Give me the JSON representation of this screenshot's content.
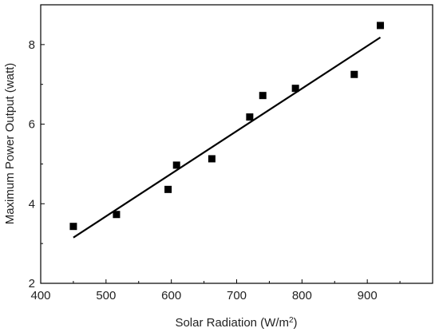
{
  "chart_data": {
    "type": "scatter",
    "xlabel_main": "Solar Radiation (W/m",
    "xlabel_sup": "2",
    "xlabel_end": ")",
    "ylabel": "Maximum Power Output (watt)",
    "xlim": [
      400,
      1000
    ],
    "ylim": [
      2,
      9
    ],
    "x_ticks": [
      400,
      500,
      600,
      700,
      800,
      900
    ],
    "y_ticks": [
      2,
      4,
      6,
      8
    ],
    "points": [
      {
        "x": 450,
        "y": 3.43
      },
      {
        "x": 516,
        "y": 3.73
      },
      {
        "x": 595,
        "y": 4.36
      },
      {
        "x": 608,
        "y": 4.97
      },
      {
        "x": 662,
        "y": 5.13
      },
      {
        "x": 720,
        "y": 6.18
      },
      {
        "x": 740,
        "y": 6.72
      },
      {
        "x": 790,
        "y": 6.9
      },
      {
        "x": 880,
        "y": 7.25
      },
      {
        "x": 920,
        "y": 8.48
      }
    ],
    "fit_line": {
      "x": [
        450,
        920
      ],
      "y": [
        3.15,
        8.18
      ]
    },
    "grid": false,
    "colors": {
      "marker": "#000000",
      "line": "#000000",
      "axis": "#000000"
    }
  }
}
